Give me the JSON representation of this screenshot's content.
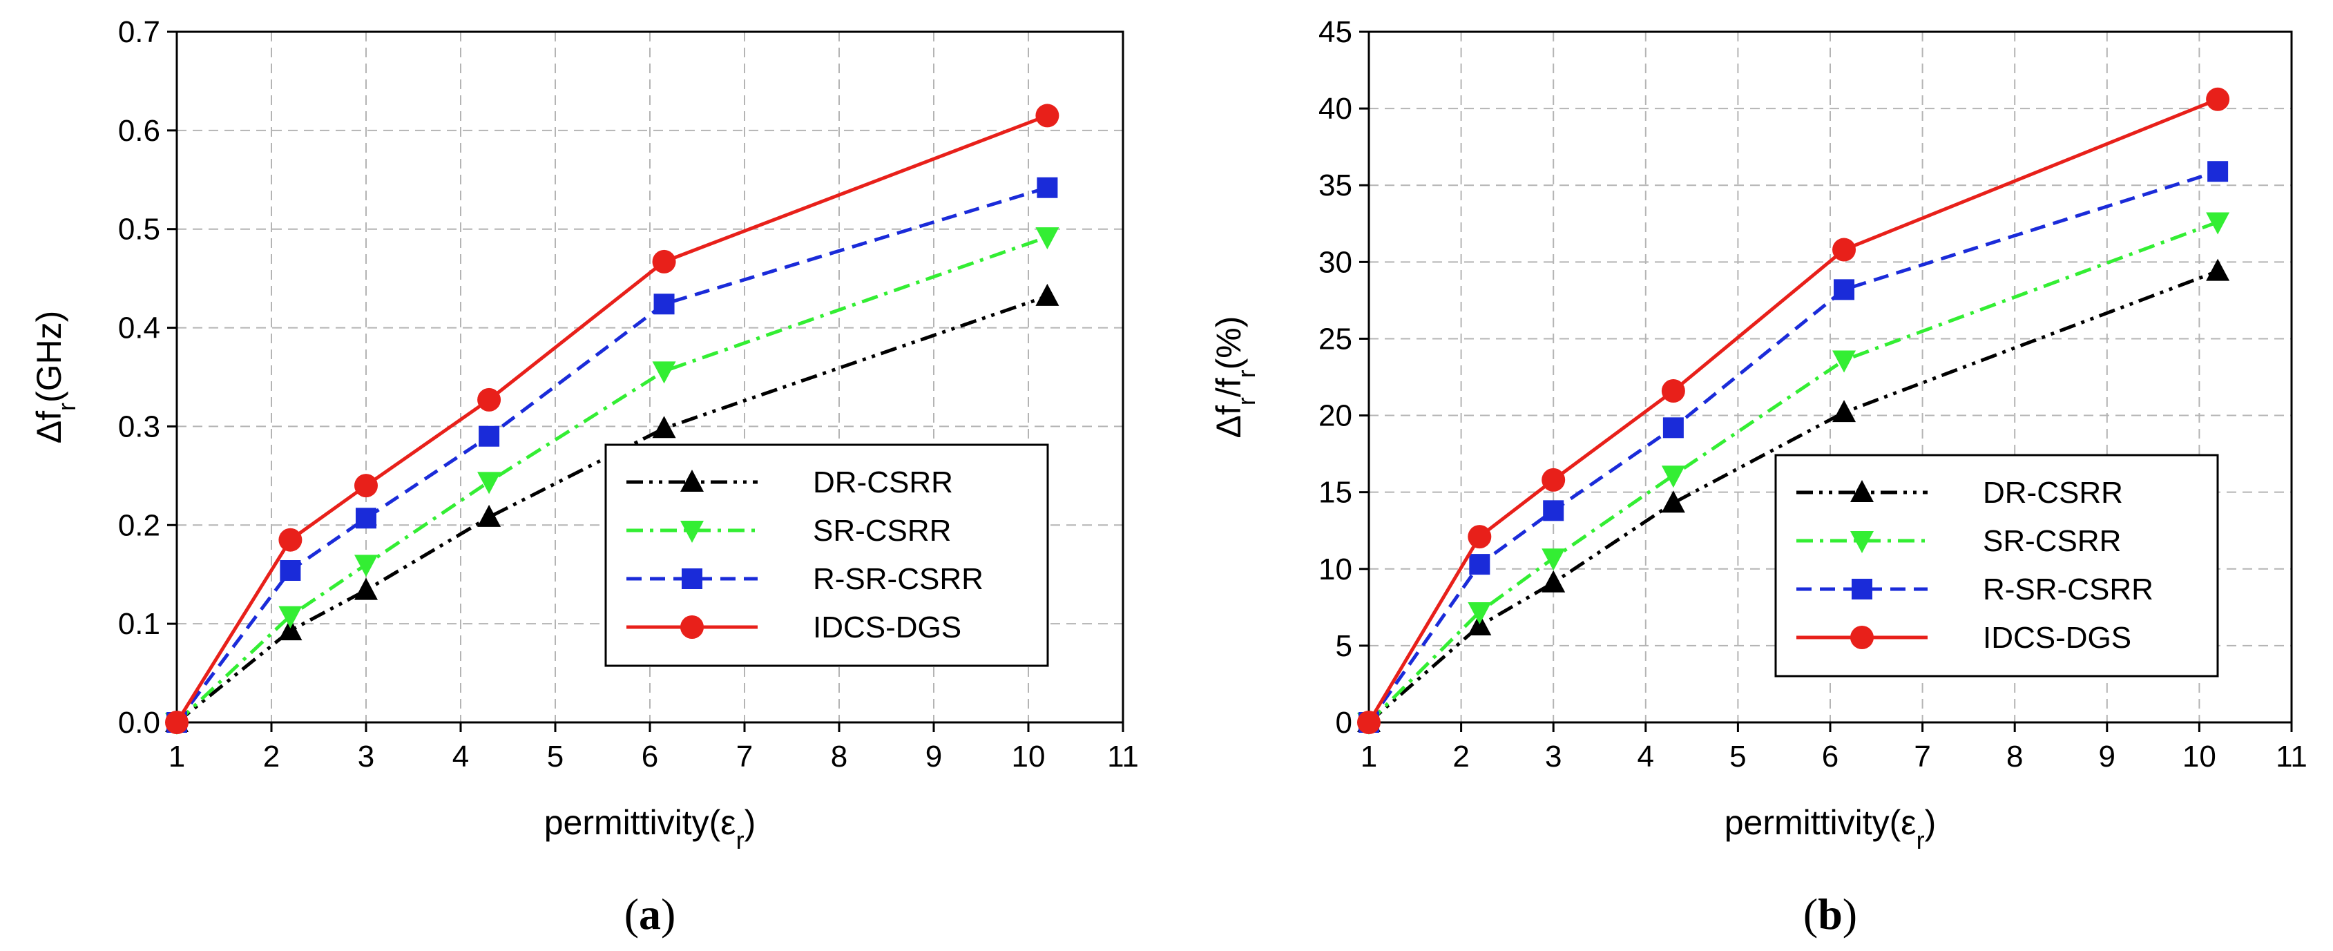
{
  "chart_data": [
    {
      "type": "line",
      "panel_label": "a",
      "ylabel": {
        "main": "Δf",
        "sub": "r",
        "rest": "(GHz)"
      },
      "xlabel": {
        "main": "permittivity(ε",
        "sub": "r",
        "rest": ")"
      },
      "xlim": [
        1,
        11
      ],
      "ylim": [
        0,
        0.7
      ],
      "xticks": [
        1,
        2,
        3,
        4,
        5,
        6,
        7,
        8,
        9,
        10,
        11
      ],
      "yticks": [
        "0.0",
        "0.1",
        "0.2",
        "0.3",
        "0.4",
        "0.5",
        "0.6",
        "0.7"
      ],
      "grid": true,
      "legend_position": "bottom-right",
      "series": [
        {
          "name": "DR-CSRR",
          "color": "#000000",
          "marker": "triangle-up",
          "dash": "dash-dot-dot",
          "x": [
            1,
            2.2,
            3,
            4.3,
            6.15,
            10.2
          ],
          "y": [
            0,
            0.093,
            0.134,
            0.208,
            0.298,
            0.432
          ]
        },
        {
          "name": "SR-CSRR",
          "color": "#33ee33",
          "marker": "triangle-down",
          "dash": "dash-dot",
          "x": [
            1,
            2.2,
            3,
            4.3,
            6.15,
            10.2
          ],
          "y": [
            0,
            0.108,
            0.16,
            0.244,
            0.356,
            0.492
          ]
        },
        {
          "name": "R-SR-CSRR",
          "color": "#1a2bd9",
          "marker": "square",
          "dash": "dash",
          "x": [
            1,
            2.2,
            3,
            4.3,
            6.15,
            10.2
          ],
          "y": [
            0,
            0.154,
            0.207,
            0.29,
            0.424,
            0.542
          ]
        },
        {
          "name": "IDCS-DGS",
          "color": "#e8201a",
          "marker": "circle",
          "dash": "solid",
          "x": [
            1,
            2.2,
            3,
            4.3,
            6.15,
            10.2
          ],
          "y": [
            0,
            0.185,
            0.24,
            0.327,
            0.467,
            0.615
          ]
        }
      ]
    },
    {
      "type": "line",
      "panel_label": "b",
      "ylabel": {
        "main": "Δf",
        "sub": "r",
        "rest": "/f",
        "sub2": "r",
        "rest2": "(%)"
      },
      "xlabel": {
        "main": "permittivity(ε",
        "sub": "r",
        "rest": ")"
      },
      "xlim": [
        1,
        11
      ],
      "ylim": [
        0,
        45
      ],
      "xticks": [
        1,
        2,
        3,
        4,
        5,
        6,
        7,
        8,
        9,
        10,
        11
      ],
      "yticks": [
        "0",
        "5",
        "10",
        "15",
        "20",
        "25",
        "30",
        "35",
        "40",
        "45"
      ],
      "grid": true,
      "legend_position": "bottom-right",
      "series": [
        {
          "name": "DR-CSRR",
          "color": "#000000",
          "marker": "triangle-up",
          "dash": "dash-dot-dot",
          "x": [
            1,
            2.2,
            3,
            4.3,
            6.15,
            10.2
          ],
          "y": [
            0,
            6.3,
            9.1,
            14.3,
            20.2,
            29.4
          ]
        },
        {
          "name": "SR-CSRR",
          "color": "#33ee33",
          "marker": "triangle-down",
          "dash": "dash-dot",
          "x": [
            1,
            2.2,
            3,
            4.3,
            6.15,
            10.2
          ],
          "y": [
            0,
            7.2,
            10.7,
            16.1,
            23.6,
            32.6
          ]
        },
        {
          "name": "R-SR-CSRR",
          "color": "#1a2bd9",
          "marker": "square",
          "dash": "dash",
          "x": [
            1,
            2.2,
            3,
            4.3,
            6.15,
            10.2
          ],
          "y": [
            0,
            10.3,
            13.8,
            19.2,
            28.2,
            35.9
          ]
        },
        {
          "name": "IDCS-DGS",
          "color": "#e8201a",
          "marker": "circle",
          "dash": "solid",
          "x": [
            1,
            2.2,
            3,
            4.3,
            6.15,
            10.2
          ],
          "y": [
            0,
            12.1,
            15.8,
            21.6,
            30.8,
            40.6
          ]
        }
      ]
    }
  ]
}
